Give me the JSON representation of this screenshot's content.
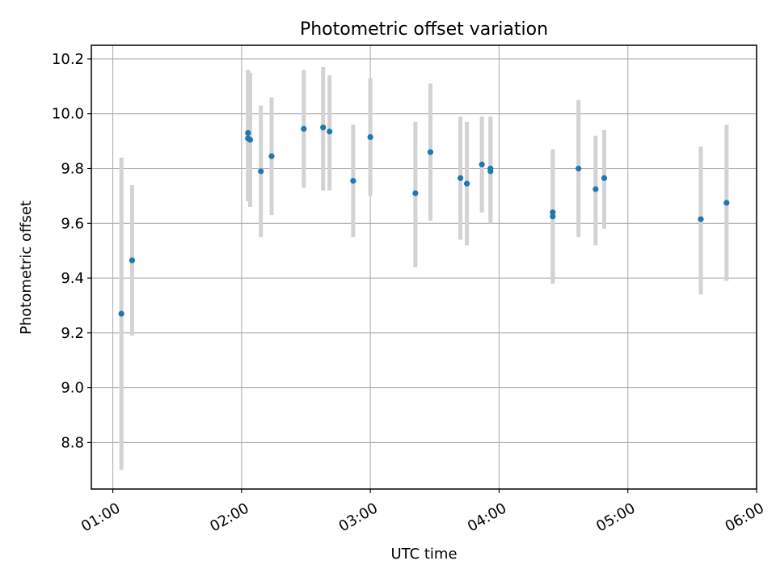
{
  "chart_data": {
    "type": "scatter",
    "title": "Photometric offset variation",
    "xlabel": "UTC time",
    "ylabel": "Photometric offset",
    "x_ticks": [
      "01:00",
      "02:00",
      "03:00",
      "04:00",
      "05:00",
      "06:00"
    ],
    "y_ticks": [
      "8.8",
      "9.0",
      "9.2",
      "9.4",
      "9.6",
      "9.8",
      "10.0",
      "10.2"
    ],
    "xlim": [
      "00:50",
      "06:00"
    ],
    "ylim": [
      8.63,
      10.25
    ],
    "grid": true,
    "marker_color": "#1f77b4",
    "errorbar_color": "#d3d3d3",
    "series": [
      {
        "x": [
          "01:04",
          "01:09",
          "02:03",
          "02:03",
          "02:04",
          "02:09",
          "02:14",
          "02:29",
          "02:38",
          "02:41",
          "02:52",
          "03:00",
          "03:21",
          "03:28",
          "03:42",
          "03:45",
          "03:52",
          "03:56",
          "03:56",
          "04:25",
          "04:25",
          "04:37",
          "04:45",
          "04:49",
          "05:34",
          "05:46"
        ],
        "y": [
          9.27,
          9.465,
          9.93,
          9.91,
          9.905,
          9.79,
          9.845,
          9.945,
          9.95,
          9.935,
          9.755,
          9.915,
          9.71,
          9.86,
          9.765,
          9.745,
          9.815,
          9.79,
          9.8,
          9.64,
          9.625,
          9.8,
          9.725,
          9.765,
          9.615,
          9.675
        ],
        "yerr_low": [
          8.7,
          9.19,
          9.7,
          9.68,
          9.66,
          9.55,
          9.63,
          9.73,
          9.72,
          9.72,
          9.55,
          9.7,
          9.44,
          9.61,
          9.54,
          9.52,
          9.64,
          9.6,
          9.61,
          9.38,
          9.4,
          9.55,
          9.52,
          9.58,
          9.34,
          9.39
        ],
        "yerr_high": [
          9.84,
          9.74,
          10.14,
          10.16,
          10.15,
          10.03,
          10.06,
          10.16,
          10.17,
          10.14,
          9.96,
          10.13,
          9.97,
          10.11,
          9.99,
          9.97,
          9.99,
          9.98,
          9.99,
          9.87,
          9.85,
          10.05,
          9.92,
          9.94,
          9.88,
          9.96
        ]
      }
    ]
  }
}
